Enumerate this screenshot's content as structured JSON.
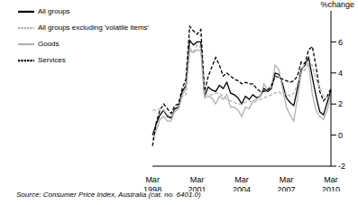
{
  "chart_data": {
    "type": "line",
    "y_label": "%change",
    "source": "Source: Consumer Price Index, Australia (cat. no. 6401.0)",
    "categories": [
      "Mar 1998",
      null,
      null,
      null,
      null,
      null,
      null,
      null,
      null,
      null,
      null,
      null,
      "Mar 2001",
      null,
      null,
      null,
      null,
      null,
      null,
      null,
      null,
      null,
      null,
      null,
      "Mar 2004",
      null,
      null,
      null,
      null,
      null,
      null,
      null,
      null,
      null,
      null,
      null,
      "Mar 2007",
      null,
      null,
      null,
      null,
      null,
      null,
      null,
      null,
      null,
      null,
      null,
      "Mar 2010"
    ],
    "ylim": [
      -2,
      8
    ],
    "yticks": [
      -2,
      0,
      2,
      4,
      6
    ],
    "grid": false,
    "legend": "top-left",
    "series": [
      {
        "name": "All groups",
        "color": "#000000",
        "line_style": "solid",
        "values": [
          0.0,
          0.7,
          1.3,
          1.6,
          1.2,
          1.1,
          1.7,
          1.8,
          2.8,
          3.2,
          6.1,
          5.8,
          6.0,
          6.0,
          2.5,
          3.1,
          2.9,
          2.8,
          3.2,
          3.0,
          3.4,
          2.7,
          2.6,
          2.4,
          2.0,
          2.5,
          2.3,
          2.6,
          2.4,
          2.5,
          3.0,
          2.8,
          3.0,
          4.0,
          3.9,
          3.3,
          2.4,
          2.1,
          1.9,
          3.0,
          4.2,
          4.5,
          5.0,
          3.7,
          2.5,
          1.5,
          1.3,
          2.1,
          2.9
        ]
      },
      {
        "name": "Goods",
        "color": "#b0b0b0",
        "line_style": "solid",
        "values": [
          -0.3,
          0.3,
          1.0,
          1.2,
          0.9,
          0.9,
          1.6,
          1.7,
          2.6,
          3.0,
          5.6,
          5.3,
          5.5,
          5.4,
          2.4,
          2.5,
          2.4,
          2.0,
          2.5,
          2.3,
          2.6,
          1.8,
          1.8,
          1.6,
          1.2,
          1.8,
          1.7,
          2.2,
          2.3,
          2.5,
          3.3,
          2.9,
          3.1,
          4.5,
          4.2,
          3.0,
          1.8,
          1.3,
          0.9,
          2.4,
          4.0,
          4.7,
          4.5,
          2.6,
          1.6,
          1.2,
          1.0,
          1.6,
          2.5
        ]
      },
      {
        "name": "Services",
        "color": "#000000",
        "line_style": "dashed",
        "values": [
          -0.7,
          0.8,
          1.6,
          2.0,
          1.7,
          1.4,
          1.9,
          2.0,
          3.0,
          3.6,
          7.0,
          6.7,
          6.5,
          6.8,
          2.8,
          3.8,
          4.4,
          5.0,
          4.5,
          3.8,
          4.0,
          3.8,
          3.6,
          3.5,
          3.3,
          3.4,
          3.3,
          3.3,
          3.0,
          2.8,
          2.8,
          2.9,
          3.2,
          3.8,
          3.7,
          3.6,
          3.5,
          3.4,
          3.5,
          3.8,
          4.7,
          4.6,
          5.5,
          5.7,
          4.4,
          2.8,
          2.2,
          2.5,
          3.0
        ]
      },
      {
        "name": "All groups excluding 'volatile items'",
        "color": "#b0b0b0",
        "line_style": "dashed",
        "values": [
          1.6,
          1.6,
          1.7,
          1.6,
          1.3,
          1.2,
          1.5,
          1.7,
          2.5,
          2.6,
          5.4,
          5.3,
          5.8,
          5.6,
          2.6,
          2.6,
          2.6,
          2.7,
          2.7,
          2.5,
          2.3,
          2.2,
          2.1,
          2.0,
          2.0,
          2.1,
          2.2,
          2.1,
          2.2,
          2.3,
          2.4,
          2.5,
          2.6,
          2.7,
          2.8,
          2.6,
          2.7,
          2.5,
          2.7,
          3.3,
          4.0,
          4.2,
          4.6,
          4.5,
          3.6,
          3.0,
          2.5,
          2.4,
          2.6
        ]
      }
    ]
  }
}
